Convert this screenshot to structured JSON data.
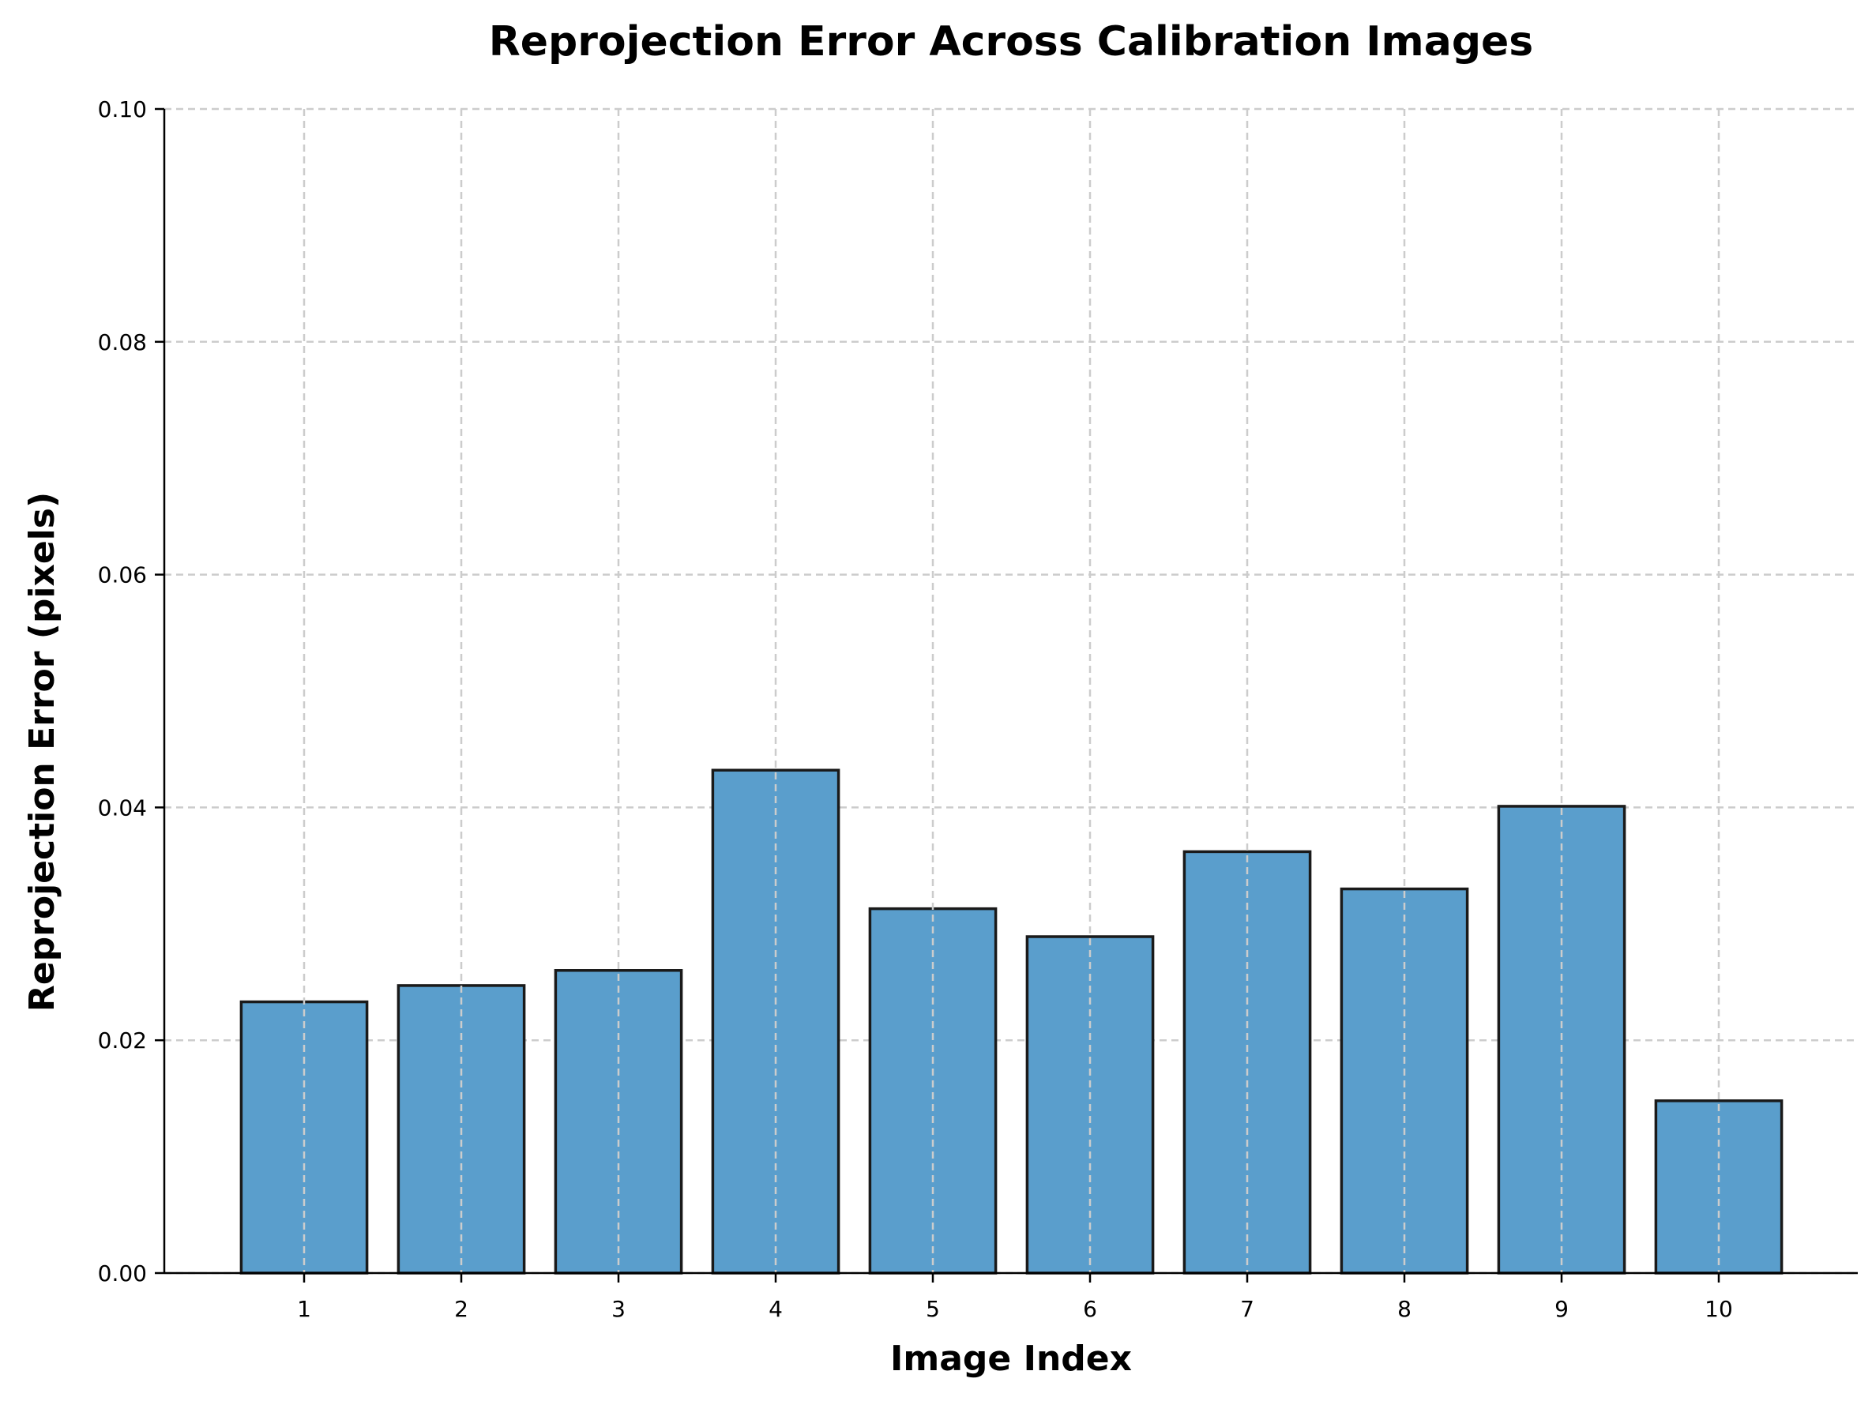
{
  "chart_data": {
    "type": "bar",
    "title": "Reprojection Error Across Calibration Images",
    "xlabel": "Image Index",
    "ylabel": "Reprojection Error (pixels)",
    "categories": [
      "1",
      "2",
      "3",
      "4",
      "5",
      "6",
      "7",
      "8",
      "9",
      "10"
    ],
    "values": [
      0.0233,
      0.0247,
      0.026,
      0.0432,
      0.0313,
      0.0289,
      0.0362,
      0.033,
      0.0401,
      0.0148
    ],
    "ylim": [
      0,
      0.1
    ],
    "yticks": [
      "0.00",
      "0.02",
      "0.04",
      "0.06",
      "0.08",
      "0.10"
    ],
    "grid": true,
    "legend": "none",
    "bar_color": "#5a9ecc",
    "bar_edge_color": "#1a1a1a"
  }
}
